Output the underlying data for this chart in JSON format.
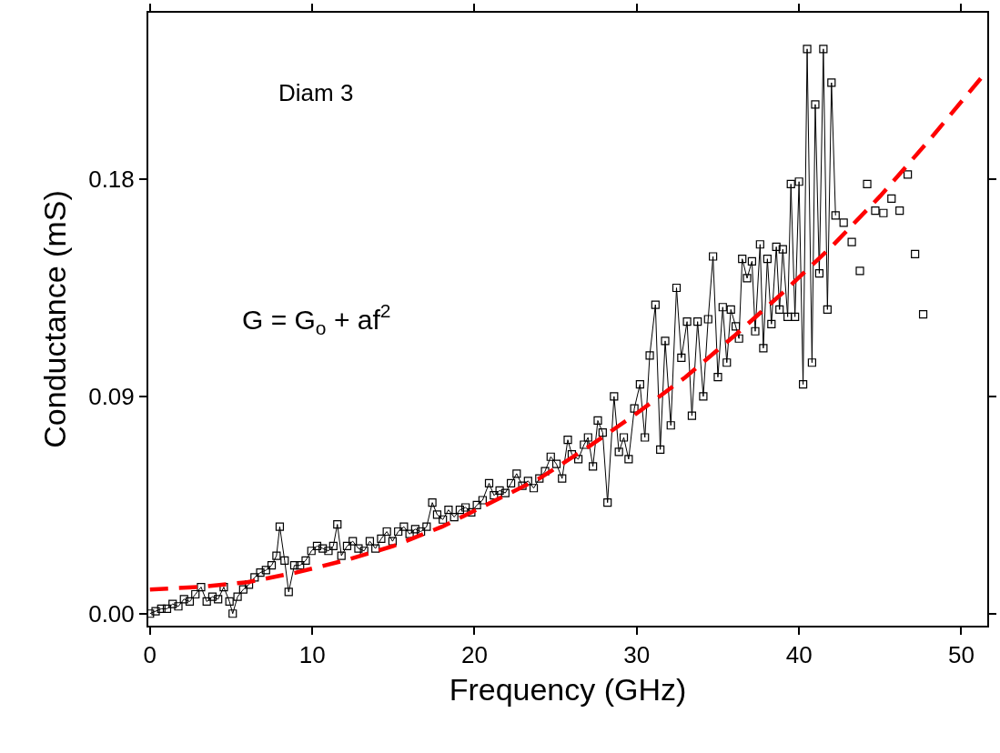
{
  "chart_data": {
    "type": "line",
    "xlabel": "Frequency (GHz)",
    "ylabel": "Conductance (mS)",
    "annotations": [
      "Diam 3",
      "G = G$_{o}$ + af$^{2}$"
    ],
    "xlim": [
      -0.1,
      51.6
    ],
    "ylim": [
      -0.005,
      0.249
    ],
    "xticks": [
      0,
      10,
      20,
      30,
      40,
      50
    ],
    "yticks": [
      {
        "value": 0,
        "label": "0.00"
      },
      {
        "value": 0.09,
        "label": "0.09"
      },
      {
        "value": 0.18,
        "label": "0.18"
      }
    ],
    "series": [
      {
        "color": "#000000",
        "marker": "square",
        "line_style": "solid",
        "x": [
          0.0,
          0.35,
          0.7,
          1.05,
          1.4,
          1.75,
          2.1,
          2.45,
          2.8,
          3.15,
          3.5,
          3.85,
          4.2,
          4.55,
          4.9,
          5.1,
          5.4,
          5.75,
          6.1,
          6.45,
          6.8,
          7.15,
          7.5,
          7.8,
          8.0,
          8.3,
          8.55,
          8.9,
          9.25,
          9.6,
          9.95,
          10.3,
          10.65,
          11.0,
          11.3,
          11.55,
          11.8,
          12.15,
          12.5,
          12.85,
          13.2,
          13.55,
          13.9,
          14.25,
          14.6,
          14.95,
          15.3,
          15.65,
          16.0,
          16.35,
          16.7,
          17.05,
          17.4,
          17.7,
          18.05,
          18.4,
          18.75,
          19.1,
          19.45,
          19.8,
          20.15,
          20.5,
          20.9,
          21.2,
          21.55,
          21.9,
          22.25,
          22.6,
          22.95,
          23.3,
          23.65,
          24.0,
          24.35,
          24.7,
          25.05,
          25.4,
          25.75,
          26.0,
          26.4,
          26.75,
          27.0,
          27.3,
          27.6,
          27.9,
          28.2,
          28.6,
          28.9,
          29.2,
          29.5,
          29.85,
          30.2,
          30.5,
          30.8,
          31.15,
          31.45,
          31.75,
          32.1,
          32.45,
          32.75,
          33.1,
          33.4,
          33.75,
          34.1,
          34.4,
          34.7,
          35.0,
          35.3,
          35.55,
          35.8,
          36.1,
          36.3,
          36.5,
          36.8,
          37.1,
          37.3,
          37.6,
          37.8,
          38.05,
          38.3,
          38.6,
          38.8,
          39.0,
          39.3,
          39.5,
          39.75,
          40.0,
          40.25,
          40.5,
          40.8,
          41.0,
          41.25,
          41.5,
          41.75,
          42.0,
          42.25,
          42.45,
          42.75,
          43.0,
          43.25,
          43.5,
          43.75,
          44.0,
          44.2,
          44.45,
          44.7,
          44.95,
          45.2,
          45.45,
          45.7,
          45.95,
          46.2,
          46.45,
          46.7,
          46.9,
          47.15,
          47.4,
          47.65
        ],
        "values": [
          0.0,
          0.001,
          0.002,
          0.002,
          0.004,
          0.003,
          0.006,
          0.005,
          0.008,
          0.011,
          0.005,
          0.007,
          0.006,
          0.011,
          0.005,
          0.0,
          0.007,
          0.01,
          0.012,
          0.015,
          0.017,
          0.018,
          0.02,
          0.024,
          0.036,
          0.022,
          0.009,
          0.02,
          0.02,
          0.022,
          0.026,
          0.028,
          0.027,
          0.026,
          0.028,
          0.037,
          0.024,
          0.028,
          0.03,
          0.027,
          0.026,
          0.03,
          0.027,
          0.031,
          0.034,
          0.03,
          0.034,
          0.036,
          0.033,
          0.035,
          0.034,
          0.036,
          0.046,
          0.041,
          0.039,
          0.043,
          0.04,
          0.043,
          0.044,
          0.042,
          0.045,
          0.047,
          0.054,
          0.049,
          0.051,
          0.05,
          0.054,
          0.058,
          0.053,
          0.055,
          0.052,
          0.056,
          0.059,
          0.065,
          0.062,
          0.056,
          0.072,
          0.066,
          0.064,
          0.07,
          0.073,
          0.061,
          0.08,
          0.075,
          0.046,
          0.09,
          0.067,
          0.073,
          0.064,
          0.085,
          0.095,
          0.073,
          0.107,
          0.128,
          0.068,
          0.113,
          0.078,
          0.135,
          0.106,
          0.121,
          0.082,
          0.121,
          0.09,
          0.122,
          0.148,
          0.098,
          0.127,
          0.104,
          0.126,
          0.119,
          0.114,
          0.147,
          0.139,
          0.146,
          0.117,
          0.153,
          0.11,
          0.147,
          0.12,
          0.152,
          0.126,
          0.151,
          0.123,
          0.178,
          0.123,
          0.179,
          0.095,
          0.234,
          0.104,
          0.211,
          0.141,
          0.234,
          0.126,
          0.22,
          0.165,
          null,
          0.162,
          null,
          0.154,
          null,
          0.142,
          null,
          0.178,
          null,
          0.167,
          null,
          0.166,
          null,
          0.172,
          null,
          0.167,
          null,
          0.182,
          null,
          0.149,
          null,
          0.124
        ]
      },
      {
        "color": "#ff0000",
        "marker": "none",
        "line_style": "dashed",
        "x": [
          0,
          3,
          6,
          9,
          12,
          15,
          18,
          21,
          24,
          27,
          30,
          33,
          36,
          39,
          42,
          45,
          48,
          51.6
        ],
        "values": [
          0.01,
          0.011,
          0.013,
          0.017,
          0.022,
          0.028,
          0.036,
          0.046,
          0.056,
          0.069,
          0.083,
          0.098,
          0.115,
          0.133,
          0.152,
          0.173,
          0.196,
          0.225
        ]
      }
    ]
  }
}
